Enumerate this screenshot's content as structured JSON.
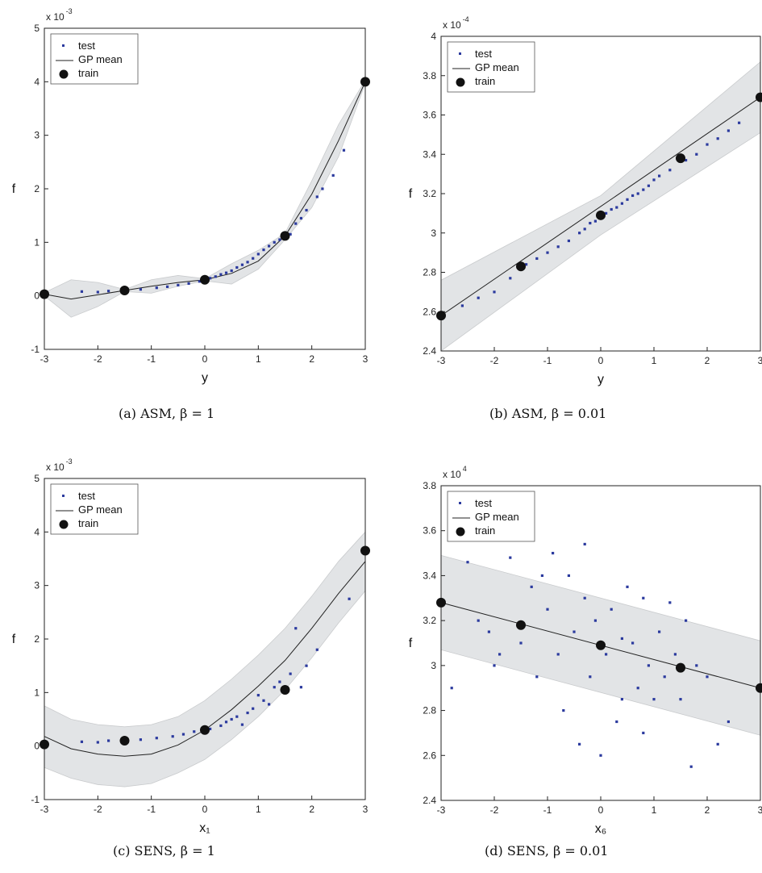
{
  "chart_data": [
    {
      "type": "scatter",
      "caption": "(a)  ASM, β = 1",
      "xlabel": "y",
      "ylabel": "f",
      "exponent_base": "x 10",
      "exponent_power": "-3",
      "xlim": [
        -3,
        3
      ],
      "ylim": [
        -1,
        5
      ],
      "xticks": [
        "-3",
        "-2",
        "-1",
        "0",
        "1",
        "2",
        "3"
      ],
      "yticks": [
        "-1",
        "0",
        "1",
        "2",
        "3",
        "4",
        "5"
      ],
      "legend": [
        "test",
        "GP mean",
        "train"
      ],
      "legend_position": "top-left",
      "train": {
        "x": [
          -3,
          -1.5,
          0,
          1.5,
          3
        ],
        "y": [
          0.03,
          0.1,
          0.3,
          1.12,
          4.0
        ]
      },
      "mean": {
        "x": [
          -3,
          -2.5,
          -2,
          -1.5,
          -1,
          -0.5,
          0,
          0.5,
          1,
          1.5,
          2,
          2.5,
          3
        ],
        "y": [
          0.03,
          -0.06,
          0.02,
          0.1,
          0.18,
          0.25,
          0.3,
          0.42,
          0.65,
          1.12,
          1.9,
          2.9,
          4.0
        ]
      },
      "band": {
        "x": [
          -3,
          -2.5,
          -2,
          -1.5,
          -1,
          -0.5,
          0,
          0.5,
          1,
          1.5,
          2,
          2.5,
          3
        ],
        "lower": [
          0.0,
          -0.4,
          -0.2,
          0.08,
          0.05,
          0.18,
          0.28,
          0.22,
          0.5,
          1.05,
          1.65,
          2.6,
          3.97
        ],
        "upper": [
          0.06,
          0.3,
          0.25,
          0.12,
          0.3,
          0.38,
          0.32,
          0.6,
          0.85,
          1.17,
          2.15,
          3.2,
          4.03
        ]
      },
      "test": {
        "x": [
          -2.3,
          -2.0,
          -1.8,
          -1.2,
          -0.9,
          -0.7,
          -0.5,
          -0.3,
          -0.1,
          0.1,
          0.2,
          0.3,
          0.4,
          0.5,
          0.6,
          0.7,
          0.8,
          0.9,
          1.0,
          1.1,
          1.2,
          1.3,
          1.4,
          1.6,
          1.7,
          1.8,
          1.9,
          2.1,
          2.2,
          2.4,
          2.6
        ],
        "y": [
          0.08,
          0.07,
          0.09,
          0.12,
          0.15,
          0.17,
          0.2,
          0.23,
          0.27,
          0.33,
          0.36,
          0.4,
          0.43,
          0.47,
          0.53,
          0.58,
          0.63,
          0.7,
          0.78,
          0.86,
          0.93,
          1.0,
          1.05,
          1.15,
          1.35,
          1.45,
          1.6,
          1.85,
          2.0,
          2.25,
          2.72
        ]
      }
    },
    {
      "type": "scatter",
      "caption": "(b)  ASM, β = 0.01",
      "xlabel": "y",
      "ylabel": "f",
      "exponent_base": "x 10",
      "exponent_power": "-4",
      "xlim": [
        -3,
        3
      ],
      "ylim": [
        2.4,
        4
      ],
      "xticks": [
        "-3",
        "-2",
        "-1",
        "0",
        "1",
        "2",
        "3"
      ],
      "yticks": [
        "2.4",
        "2.6",
        "2.8",
        "3",
        "3.2",
        "3.4",
        "3.6",
        "3.8",
        "4"
      ],
      "legend": [
        "test",
        "GP mean",
        "train"
      ],
      "legend_position": "top-left",
      "train": {
        "x": [
          -3,
          -1.5,
          0,
          1.5,
          3
        ],
        "y": [
          2.58,
          2.83,
          3.09,
          3.38,
          3.69
        ]
      },
      "mean": {
        "x": [
          -3,
          3
        ],
        "y": [
          2.58,
          3.69
        ]
      },
      "band": {
        "x": [
          -3,
          0,
          3
        ],
        "lower": [
          2.4,
          2.99,
          3.51
        ],
        "upper": [
          2.76,
          3.19,
          3.87
        ]
      },
      "test": {
        "x": [
          -2.6,
          -2.3,
          -2.0,
          -1.7,
          -1.4,
          -1.2,
          -1.0,
          -0.8,
          -0.6,
          -0.4,
          -0.3,
          -0.2,
          -0.1,
          0.1,
          0.2,
          0.3,
          0.4,
          0.5,
          0.6,
          0.7,
          0.8,
          0.9,
          1.0,
          1.1,
          1.3,
          1.6,
          1.8,
          2.0,
          2.2,
          2.4,
          2.6
        ],
        "y": [
          2.63,
          2.67,
          2.7,
          2.77,
          2.84,
          2.87,
          2.9,
          2.93,
          2.96,
          3.0,
          3.02,
          3.05,
          3.06,
          3.1,
          3.12,
          3.13,
          3.15,
          3.17,
          3.19,
          3.2,
          3.22,
          3.24,
          3.27,
          3.29,
          3.32,
          3.37,
          3.4,
          3.45,
          3.48,
          3.52,
          3.56
        ]
      }
    },
    {
      "type": "scatter",
      "caption": "(c)  SENS, β = 1",
      "xlabel": "x₁",
      "ylabel": "f",
      "exponent_base": "x 10",
      "exponent_power": "-3",
      "xlim": [
        -3,
        3
      ],
      "ylim": [
        -1,
        5
      ],
      "xticks": [
        "-3",
        "-2",
        "-1",
        "0",
        "1",
        "2",
        "3"
      ],
      "yticks": [
        "-1",
        "0",
        "1",
        "2",
        "3",
        "4",
        "5"
      ],
      "legend": [
        "test",
        "GP mean",
        "train"
      ],
      "legend_position": "top-left",
      "train": {
        "x": [
          -3,
          -1.5,
          0,
          1.5,
          3
        ],
        "y": [
          0.03,
          0.1,
          0.3,
          1.05,
          3.65
        ]
      },
      "mean": {
        "x": [
          -3,
          -2.5,
          -2,
          -1.5,
          -1,
          -0.5,
          0,
          0.5,
          1,
          1.5,
          2,
          2.5,
          3
        ],
        "y": [
          0.18,
          -0.05,
          -0.15,
          -0.19,
          -0.15,
          0.02,
          0.3,
          0.68,
          1.12,
          1.6,
          2.2,
          2.85,
          3.45
        ]
      },
      "band": {
        "x": [
          -3,
          -2.5,
          -2,
          -1.5,
          -1,
          -0.5,
          0,
          0.5,
          1,
          1.5,
          2,
          2.5,
          3
        ],
        "lower": [
          -0.4,
          -0.6,
          -0.72,
          -0.76,
          -0.7,
          -0.5,
          -0.25,
          0.12,
          0.55,
          1.05,
          1.65,
          2.3,
          2.9
        ],
        "upper": [
          0.75,
          0.5,
          0.4,
          0.36,
          0.4,
          0.55,
          0.85,
          1.25,
          1.7,
          2.2,
          2.8,
          3.45,
          4.0
        ]
      },
      "test": {
        "x": [
          -2.3,
          -2.0,
          -1.8,
          -1.2,
          -0.9,
          -0.6,
          -0.4,
          -0.2,
          0.1,
          0.3,
          0.4,
          0.5,
          0.6,
          0.7,
          0.8,
          0.9,
          1.0,
          1.1,
          1.2,
          1.3,
          1.4,
          1.6,
          1.7,
          1.8,
          1.9,
          2.1,
          2.7
        ],
        "y": [
          0.08,
          0.07,
          0.1,
          0.12,
          0.15,
          0.18,
          0.22,
          0.27,
          0.32,
          0.38,
          0.45,
          0.5,
          0.55,
          0.4,
          0.62,
          0.7,
          0.95,
          0.85,
          0.78,
          1.1,
          1.2,
          1.35,
          2.2,
          1.1,
          1.5,
          1.8,
          2.75
        ]
      }
    },
    {
      "type": "scatter",
      "caption": "(d)  SENS, β = 0.01",
      "xlabel": "x₆",
      "ylabel": "f",
      "exponent_base": "x 10",
      "exponent_power": "4",
      "xlim": [
        -3,
        3
      ],
      "ylim": [
        2.4,
        3.8
      ],
      "xticks": [
        "-3",
        "-2",
        "-1",
        "0",
        "1",
        "2",
        "3"
      ],
      "yticks": [
        "2.4",
        "2.6",
        "2.8",
        "3",
        "3.2",
        "3.4",
        "3.6",
        "3.8"
      ],
      "legend": [
        "test",
        "GP mean",
        "train"
      ],
      "legend_position": "top-left",
      "train": {
        "x": [
          -3,
          -1.5,
          0,
          1.5,
          3
        ],
        "y": [
          3.28,
          3.18,
          3.09,
          2.99,
          2.9
        ]
      },
      "mean": {
        "x": [
          -3,
          3
        ],
        "y": [
          3.28,
          2.9
        ]
      },
      "band": {
        "x": [
          -3,
          3
        ],
        "lower": [
          3.07,
          2.69
        ],
        "upper": [
          3.49,
          3.11
        ]
      },
      "test": {
        "x": [
          -2.8,
          -2.5,
          -2.3,
          -2.1,
          -1.9,
          -1.7,
          -1.5,
          -1.3,
          -1.2,
          -1.0,
          -0.9,
          -0.8,
          -0.7,
          -0.6,
          -0.5,
          -0.4,
          -0.3,
          -0.2,
          -0.1,
          0.0,
          0.1,
          0.2,
          0.3,
          0.4,
          0.5,
          0.6,
          0.7,
          0.8,
          0.9,
          1.0,
          1.1,
          1.2,
          1.4,
          1.5,
          1.6,
          1.7,
          1.8,
          2.0,
          2.2,
          2.4,
          -1.1,
          -0.3,
          0.4,
          1.3,
          -2.0,
          0.8
        ],
        "y": [
          2.9,
          3.46,
          3.2,
          3.15,
          3.05,
          3.48,
          3.1,
          3.35,
          2.95,
          3.25,
          3.5,
          3.05,
          2.8,
          3.4,
          3.15,
          2.65,
          3.3,
          2.95,
          3.2,
          2.6,
          3.05,
          3.25,
          2.75,
          2.85,
          3.35,
          3.1,
          2.9,
          3.3,
          3.0,
          2.85,
          3.15,
          2.95,
          3.05,
          2.85,
          3.2,
          2.55,
          3.0,
          2.95,
          2.65,
          2.75,
          3.4,
          3.54,
          3.12,
          3.28,
          3.0,
          2.7
        ]
      }
    }
  ]
}
